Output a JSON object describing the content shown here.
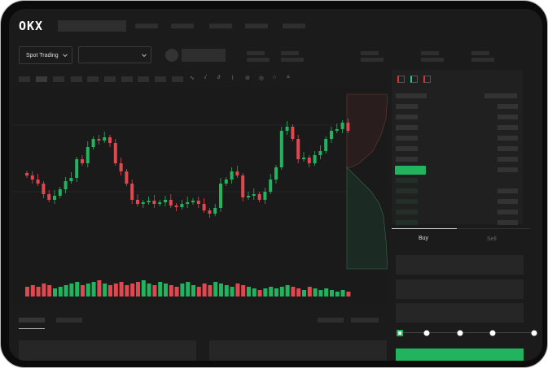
{
  "logo": "OKX",
  "market_selector": {
    "label": "Spot Trading",
    "pair_value": ""
  },
  "toolbar": {
    "icons": [
      "line-tool-icon",
      "indicator-icon",
      "formula-icon",
      "wave-icon",
      "pencil-icon",
      "target-icon",
      "circle-icon",
      "crop-icon"
    ]
  },
  "orderbook": {
    "view_icons": [
      "both-sides-icon",
      "bids-only-icon",
      "asks-only-icon"
    ]
  },
  "trade": {
    "tabs": [
      {
        "label": "Buy",
        "active": true
      },
      {
        "label": "Sell",
        "active": false
      }
    ],
    "slider_percent": 0,
    "slider_marks": [
      0,
      25,
      50,
      75,
      100
    ]
  },
  "colors": {
    "up": "#22b35e",
    "down": "#e0484f",
    "background": "#1b1b1b"
  },
  "chart_data": {
    "type": "candlestick",
    "close": [
      95,
      90,
      85,
      72,
      65,
      70,
      78,
      88,
      92,
      115,
      110,
      130,
      140,
      138,
      142,
      135,
      110,
      100,
      85,
      65,
      60,
      62,
      64,
      60,
      62,
      65,
      58,
      56,
      60,
      62,
      64,
      60,
      52,
      48,
      55,
      85,
      90,
      100,
      95,
      68,
      70,
      72,
      65,
      75,
      90,
      105,
      150,
      155,
      140,
      115,
      117,
      110,
      120,
      125,
      140,
      150,
      152,
      160,
      150
    ],
    "volume": [
      6,
      7,
      6,
      8,
      7,
      5,
      6,
      7,
      8,
      9,
      7,
      8,
      9,
      10,
      8,
      7,
      8,
      9,
      7,
      8,
      9,
      10,
      8,
      7,
      9,
      8,
      7,
      6,
      8,
      9,
      7,
      6,
      8,
      7,
      9,
      8,
      7,
      6,
      8,
      7,
      6,
      5,
      4,
      5,
      6,
      5,
      6,
      7,
      6,
      5,
      4,
      6,
      5,
      4,
      5,
      4,
      3,
      4,
      3
    ]
  }
}
